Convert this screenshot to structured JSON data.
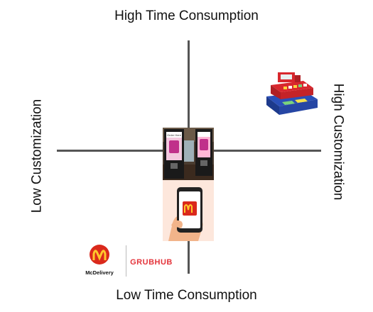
{
  "axes": {
    "top": "High Time Consumption",
    "bottom": "Low Time Consumption",
    "left": "Low Customization",
    "right": "High Customization"
  },
  "items": {
    "kiosk": {
      "screen_text": "Order Here"
    },
    "delivery_logos": {
      "mcdelivery": "McDelivery",
      "grubhub": "GRUBHUB"
    }
  },
  "colors": {
    "axis": "#555555",
    "mcdonalds_red": "#da291c",
    "mcdonalds_yellow": "#ffc72c",
    "grubhub_red": "#e4343b",
    "register_red": "#d8282e",
    "register_blue": "#2a4fb8"
  }
}
